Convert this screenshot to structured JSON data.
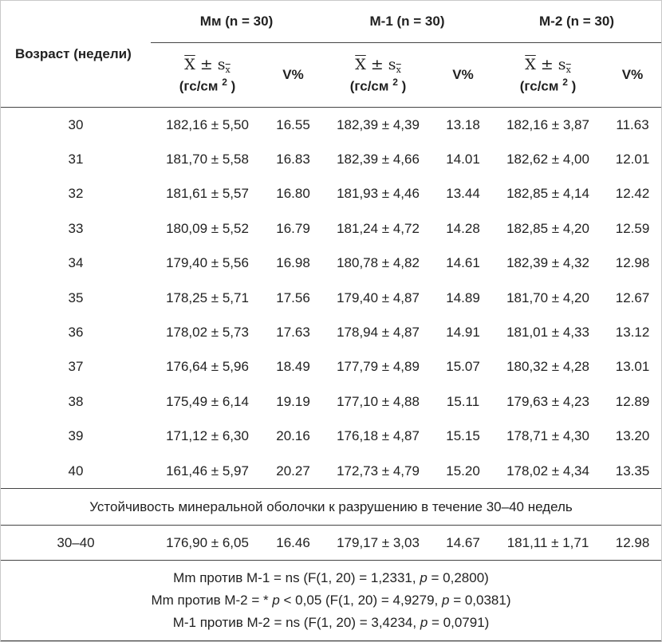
{
  "header": {
    "age_label": "Возраст (недели)",
    "groups": [
      "Мм (n = 30)",
      "М-1 (n = 30)",
      "М-2 (n = 30)"
    ],
    "mean_symbol": "X",
    "pm": "±",
    "sd_symbol": "s",
    "sd_subscript": "x",
    "unit_prefix": "(гс/см",
    "unit_exp": "2",
    "unit_suffix": ")",
    "cv_label": "V%"
  },
  "rows": [
    {
      "age": "30",
      "m_mean": "182,16 ± 5,50",
      "m_cv": "16.55",
      "m1_mean": "182,39 ± 4,39",
      "m1_cv": "13.18",
      "m2_mean": "182,16 ± 3,87",
      "m2_cv": "11.63"
    },
    {
      "age": "31",
      "m_mean": "181,70 ± 5,58",
      "m_cv": "16.83",
      "m1_mean": "182,39 ± 4,66",
      "m1_cv": "14.01",
      "m2_mean": "182,62 ± 4,00",
      "m2_cv": "12.01"
    },
    {
      "age": "32",
      "m_mean": "181,61 ± 5,57",
      "m_cv": "16.80",
      "m1_mean": "181,93 ± 4,46",
      "m1_cv": "13.44",
      "m2_mean": "182,85 ± 4,14",
      "m2_cv": "12.42"
    },
    {
      "age": "33",
      "m_mean": "180,09 ± 5,52",
      "m_cv": "16.79",
      "m1_mean": "181,24 ± 4,72",
      "m1_cv": "14.28",
      "m2_mean": "182,85 ± 4,20",
      "m2_cv": "12.59"
    },
    {
      "age": "34",
      "m_mean": "179,40 ± 5,56",
      "m_cv": "16.98",
      "m1_mean": "180,78 ± 4,82",
      "m1_cv": "14.61",
      "m2_mean": "182,39 ± 4,32",
      "m2_cv": "12.98"
    },
    {
      "age": "35",
      "m_mean": "178,25 ± 5,71",
      "m_cv": "17.56",
      "m1_mean": "179,40 ± 4,87",
      "m1_cv": "14.89",
      "m2_mean": "181,70 ± 4,20",
      "m2_cv": "12.67"
    },
    {
      "age": "36",
      "m_mean": "178,02 ± 5,73",
      "m_cv": "17.63",
      "m1_mean": "178,94 ± 4,87",
      "m1_cv": "14.91",
      "m2_mean": "181,01 ± 4,33",
      "m2_cv": "13.12"
    },
    {
      "age": "37",
      "m_mean": "176,64 ± 5,96",
      "m_cv": "18.49",
      "m1_mean": "177,79 ± 4,89",
      "m1_cv": "15.07",
      "m2_mean": "180,32 ± 4,28",
      "m2_cv": "13.01"
    },
    {
      "age": "38",
      "m_mean": "175,49 ± 6,14",
      "m_cv": "19.19",
      "m1_mean": "177,10 ± 4,88",
      "m1_cv": "15.11",
      "m2_mean": "179,63 ± 4,23",
      "m2_cv": "12.89"
    },
    {
      "age": "39",
      "m_mean": "171,12 ± 6,30",
      "m_cv": "20.16",
      "m1_mean": "176,18 ± 4,87",
      "m1_cv": "15.15",
      "m2_mean": "178,71 ± 4,30",
      "m2_cv": "13.20"
    },
    {
      "age": "40",
      "m_mean": "161,46 ± 5,97",
      "m_cv": "20.27",
      "m1_mean": "172,73 ± 4,79",
      "m1_cv": "15.20",
      "m2_mean": "178,02 ± 4,34",
      "m2_cv": "13.35"
    }
  ],
  "section_title": "Устойчивость минеральной оболочки к разрушению в течение 30–40 недель",
  "summary": {
    "age": "30–40",
    "m_mean": "176,90 ± 6,05",
    "m_cv": "16.46",
    "m1_mean": "179,17 ± 3,03",
    "m1_cv": "14.67",
    "m2_mean": "181,11 ± 1,71",
    "m2_cv": "12.98"
  },
  "notes": [
    {
      "before": "Mm против M-1 = ns (F(1, 20) = 1,2331, ",
      "p": "p",
      "after": " = 0,2800)"
    },
    {
      "before": "Mm против M-2 = * ",
      "p": "p",
      "after": " < 0,05 (F(1, 20) = 4,9279, ",
      "p2": "p",
      "after2": " = 0,0381)"
    },
    {
      "before": "M-1 против M-2 = ns (F(1, 20) = 3,4234, ",
      "p": "p",
      "after": " = 0,0791)"
    }
  ]
}
